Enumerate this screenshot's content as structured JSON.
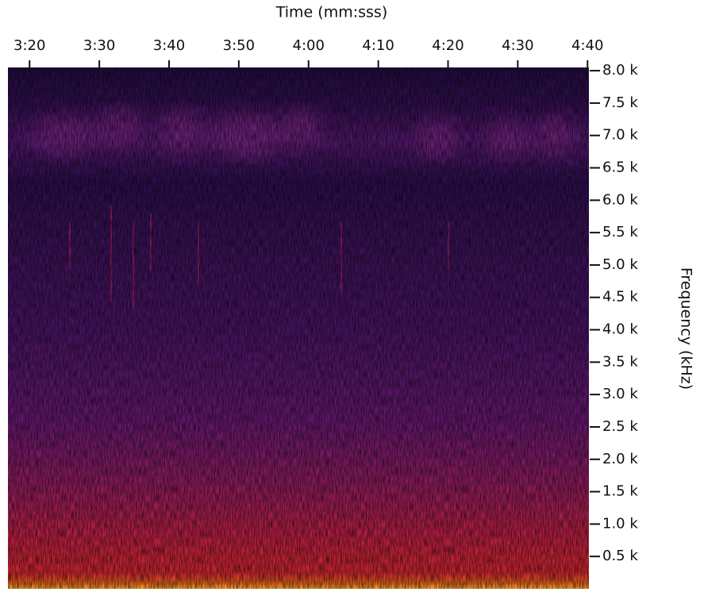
{
  "chart_data": {
    "type": "spectrogram",
    "x_label": "Time (mm:sss)",
    "y_label": "Frequency (kHz)",
    "xlim": [
      196.9,
      280.2
    ],
    "xticks": [
      {
        "value": 200,
        "label": "3:20"
      },
      {
        "value": 210,
        "label": "3:30"
      },
      {
        "value": 220,
        "label": "3:40"
      },
      {
        "value": 230,
        "label": "3:50"
      },
      {
        "value": 240,
        "label": "4:00"
      },
      {
        "value": 250,
        "label": "4:10"
      },
      {
        "value": 260,
        "label": "4:20"
      },
      {
        "value": 270,
        "label": "4:30"
      },
      {
        "value": 280,
        "label": "4:40"
      }
    ],
    "ylim": [
      0,
      8.05
    ],
    "yticks": [
      {
        "value": 8.0,
        "label": "8.0 k"
      },
      {
        "value": 7.5,
        "label": "7.5 k"
      },
      {
        "value": 7.0,
        "label": "7.0 k"
      },
      {
        "value": 6.5,
        "label": "6.5 k"
      },
      {
        "value": 6.0,
        "label": "6.0 k"
      },
      {
        "value": 5.5,
        "label": "5.5 k"
      },
      {
        "value": 5.0,
        "label": "5.0 k"
      },
      {
        "value": 4.5,
        "label": "4.5 k"
      },
      {
        "value": 4.0,
        "label": "4.0 k"
      },
      {
        "value": 3.5,
        "label": "3.5 k"
      },
      {
        "value": 3.0,
        "label": "3.0 k"
      },
      {
        "value": 2.5,
        "label": "2.5 k"
      },
      {
        "value": 2.0,
        "label": "2.0 k"
      },
      {
        "value": 1.5,
        "label": "1.5 k"
      },
      {
        "value": 1.0,
        "label": "1.0 k"
      },
      {
        "value": 0.5,
        "label": "0.5 k"
      }
    ]
  }
}
